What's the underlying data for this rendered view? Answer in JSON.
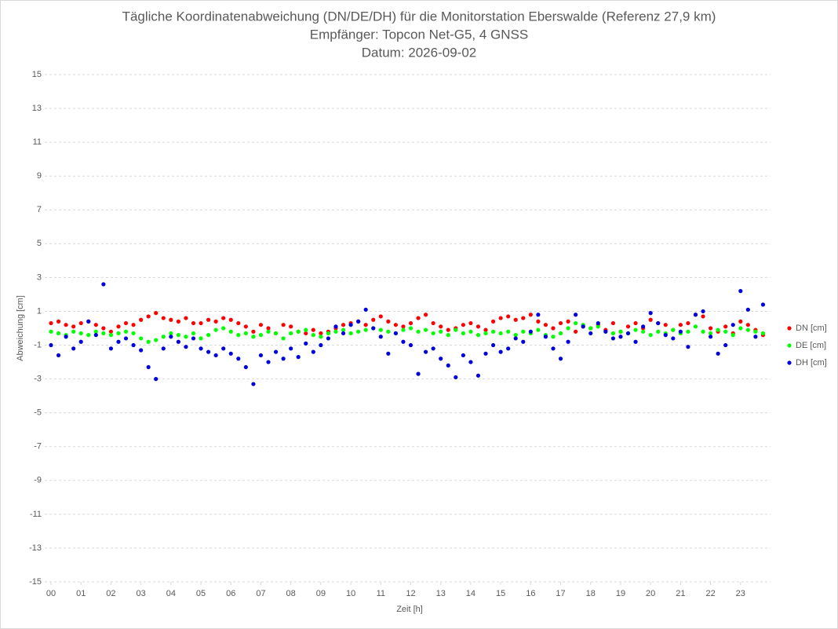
{
  "chart_data": {
    "type": "scatter",
    "title": "Tägliche Koordinatenabweichung (DN/DE/DH) für die Monitorstation Eberswalde (Referenz 27,9 km)",
    "subtitle": [
      "Empfänger: Topcon Net-G5, 4 GNSS",
      "Datum: 2026-09-02"
    ],
    "x_label": "Zeit [h]",
    "y_label": "Abweichung [cm]",
    "xlim": [
      0,
      24
    ],
    "ylim": [
      -15,
      15
    ],
    "xticks": [
      {
        "value": 0,
        "label": "00"
      },
      {
        "value": 1,
        "label": "01"
      },
      {
        "value": 2,
        "label": "02"
      },
      {
        "value": 3,
        "label": "03"
      },
      {
        "value": 4,
        "label": "04"
      },
      {
        "value": 5,
        "label": "05"
      },
      {
        "value": 6,
        "label": "06"
      },
      {
        "value": 7,
        "label": "07"
      },
      {
        "value": 8,
        "label": "08"
      },
      {
        "value": 9,
        "label": "09"
      },
      10,
      11,
      12,
      13,
      14,
      15,
      16,
      17,
      18,
      19,
      20,
      21,
      22,
      23
    ],
    "yticks": [
      -15,
      -13,
      -11,
      -9,
      -7,
      -5,
      -3,
      -1,
      1,
      3,
      5,
      7,
      9,
      11,
      13,
      15
    ],
    "grid": true,
    "legend": "right",
    "x": [
      0,
      0.25,
      0.5,
      0.75,
      1,
      1.25,
      1.5,
      1.75,
      2,
      2.25,
      2.5,
      2.75,
      3,
      3.25,
      3.5,
      3.75,
      4,
      4.25,
      4.5,
      4.75,
      5,
      5.25,
      5.5,
      5.75,
      6,
      6.25,
      6.5,
      6.75,
      7,
      7.25,
      7.5,
      7.75,
      8,
      8.25,
      8.5,
      8.75,
      9,
      9.25,
      9.5,
      9.75,
      10,
      10.25,
      10.5,
      10.75,
      11,
      11.25,
      11.5,
      11.75,
      12,
      12.25,
      12.5,
      12.75,
      13,
      13.25,
      13.5,
      13.75,
      14,
      14.25,
      14.5,
      14.75,
      15,
      15.25,
      15.5,
      15.75,
      16,
      16.25,
      16.5,
      16.75,
      17,
      17.25,
      17.5,
      17.75,
      18,
      18.25,
      18.5,
      18.75,
      19,
      19.25,
      19.5,
      19.75,
      20,
      20.25,
      20.5,
      20.75,
      21,
      21.25,
      21.5,
      21.75,
      22,
      22.25,
      22.5,
      22.75,
      23,
      23.25,
      23.5,
      23.75
    ],
    "series": [
      {
        "name": "DN [cm]",
        "color": "#ff0000",
        "values": [
          0.3,
          0.4,
          0.2,
          0.1,
          0.3,
          0.4,
          0.2,
          0.0,
          -0.2,
          0.1,
          0.3,
          0.2,
          0.5,
          0.7,
          0.9,
          0.6,
          0.5,
          0.4,
          0.6,
          0.3,
          0.3,
          0.5,
          0.4,
          0.6,
          0.5,
          0.3,
          0.1,
          -0.2,
          0.2,
          0.0,
          -0.3,
          0.2,
          0.1,
          -0.2,
          -0.3,
          -0.1,
          -0.3,
          -0.2,
          0.0,
          0.2,
          0.3,
          0.4,
          0.2,
          0.5,
          0.7,
          0.4,
          0.2,
          0.1,
          0.3,
          0.6,
          0.8,
          0.3,
          0.1,
          -0.1,
          0.0,
          0.2,
          0.3,
          0.1,
          -0.1,
          0.4,
          0.6,
          0.7,
          0.5,
          0.6,
          0.8,
          0.4,
          0.2,
          0.0,
          0.3,
          0.4,
          -0.2,
          0.1,
          0.0,
          0.2,
          -0.1,
          0.3,
          -0.2,
          0.1,
          0.3,
          0.0,
          0.5,
          0.3,
          0.2,
          -0.1,
          0.2,
          0.3,
          0.8,
          0.7,
          0.0,
          -0.2,
          0.1,
          -0.3,
          0.4,
          0.2,
          -0.1,
          -0.4
        ]
      },
      {
        "name": "DE [cm]",
        "color": "#00ff00",
        "values": [
          -0.2,
          -0.3,
          -0.4,
          -0.2,
          -0.3,
          -0.4,
          -0.2,
          -0.3,
          -0.4,
          -0.3,
          -0.2,
          -0.3,
          -0.6,
          -0.8,
          -0.7,
          -0.5,
          -0.3,
          -0.4,
          -0.5,
          -0.3,
          -0.6,
          -0.4,
          -0.1,
          0.0,
          -0.2,
          -0.4,
          -0.3,
          -0.5,
          -0.4,
          -0.2,
          -0.3,
          -0.6,
          -0.3,
          -0.2,
          -0.1,
          -0.4,
          -0.5,
          -0.3,
          -0.2,
          -0.1,
          -0.3,
          -0.2,
          -0.1,
          0.0,
          -0.1,
          -0.2,
          -0.3,
          -0.1,
          0.0,
          -0.2,
          -0.1,
          -0.3,
          -0.2,
          -0.4,
          -0.1,
          -0.3,
          -0.2,
          -0.4,
          -0.3,
          -0.2,
          -0.3,
          -0.2,
          -0.4,
          -0.2,
          -0.3,
          -0.1,
          -0.4,
          -0.5,
          -0.3,
          0.0,
          0.3,
          0.2,
          0.0,
          0.1,
          -0.2,
          -0.3,
          -0.2,
          -0.3,
          -0.1,
          -0.2,
          -0.4,
          -0.2,
          -0.3,
          -0.1,
          -0.3,
          -0.2,
          0.1,
          -0.2,
          -0.3,
          -0.1,
          -0.2,
          -0.4,
          0.0,
          -0.1,
          -0.2,
          -0.3
        ]
      },
      {
        "name": "DH [cm]",
        "color": "#0000dd",
        "values": [
          -1.0,
          -1.6,
          -0.5,
          -1.2,
          -0.8,
          0.4,
          -0.4,
          2.6,
          -1.2,
          -0.8,
          -0.6,
          -1.0,
          -1.3,
          -2.3,
          -3.0,
          -1.2,
          -0.5,
          -0.8,
          -1.1,
          -0.6,
          -1.2,
          -1.4,
          -1.6,
          -1.2,
          -1.5,
          -1.8,
          -2.3,
          -3.3,
          -1.6,
          -2.0,
          -1.4,
          -1.8,
          -1.2,
          -1.7,
          -0.9,
          -1.4,
          -1.0,
          -0.6,
          0.1,
          -0.3,
          0.2,
          0.4,
          1.1,
          0.0,
          -0.5,
          -1.5,
          -0.3,
          -0.8,
          -1.0,
          -2.7,
          -1.4,
          -1.2,
          -1.8,
          -2.2,
          -2.9,
          -1.6,
          -2.0,
          -2.8,
          -1.5,
          -1.0,
          -1.4,
          -1.2,
          -0.6,
          -0.8,
          -0.2,
          0.8,
          -0.5,
          -1.2,
          -1.8,
          -0.8,
          0.8,
          0.1,
          -0.3,
          0.3,
          -0.2,
          -0.6,
          -0.5,
          -0.3,
          -0.8,
          0.1,
          0.9,
          0.3,
          -0.4,
          -0.6,
          -0.2,
          -1.1,
          0.8,
          1.0,
          -0.5,
          -1.5,
          -1.0,
          0.2,
          2.2,
          1.1,
          -0.5,
          1.4
        ]
      }
    ]
  }
}
